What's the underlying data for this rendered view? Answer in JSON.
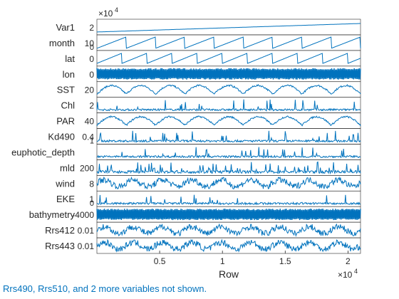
{
  "chart_data": {
    "type": "line",
    "subtype": "stackedplot",
    "color": "#0072BD",
    "xlabel": "Row",
    "xlim": [
      1,
      21000
    ],
    "xticks": [
      5000,
      10000,
      15000,
      20000
    ],
    "xtick_labels": [
      "0.5",
      "1",
      "1.5",
      "2"
    ],
    "x_exponent_base": "×10",
    "x_exponent_power": "4",
    "top_exponent_base": "×10",
    "top_exponent_power": "4",
    "footnote": "Rrs490, Rrs510, and 2 more variables not shown.",
    "variables": [
      {
        "name": "Var1",
        "ytick": "2",
        "pattern": "ramp",
        "range": [
          0,
          2.1
        ]
      },
      {
        "name": "month",
        "ytick": "10",
        "ytick2": "0",
        "pattern": "sawtooth",
        "range": [
          0,
          12
        ]
      },
      {
        "name": "lat",
        "ytick": "0",
        "pattern": "sawtooth2",
        "range": [
          -30,
          30
        ]
      },
      {
        "name": "lon",
        "ytick": "0",
        "pattern": "dense",
        "range": [
          -180,
          180
        ]
      },
      {
        "name": "SST",
        "ytick": "20",
        "pattern": "seasonal",
        "range": [
          10,
          30
        ]
      },
      {
        "name": "Chl",
        "ytick": "2",
        "pattern": "spiky",
        "range": [
          0,
          3
        ]
      },
      {
        "name": "PAR",
        "ytick": "40",
        "pattern": "seasonal",
        "range": [
          10,
          60
        ]
      },
      {
        "name": "Kd490",
        "ytick": "0.4",
        "ytick2": "1",
        "pattern": "spiky",
        "range": [
          0,
          0.6
        ]
      },
      {
        "name": "euphotic_depth",
        "ytick": "",
        "pattern": "spiky",
        "range": [
          0,
          1
        ]
      },
      {
        "name": "mld",
        "ytick": "200",
        "pattern": "spiky2",
        "range": [
          0,
          400
        ]
      },
      {
        "name": "wind",
        "ytick": "8",
        "pattern": "noisy",
        "range": [
          2,
          14
        ]
      },
      {
        "name": "EKE",
        "ytick": "1",
        "ytick2": "0",
        "pattern": "spiky",
        "range": [
          0,
          1.5
        ]
      },
      {
        "name": "bathymetry",
        "ytick": "-4000",
        "pattern": "dense",
        "range": [
          -6000,
          0
        ]
      },
      {
        "name": "Rrs412",
        "ytick": "0.01",
        "pattern": "noisy",
        "range": [
          0,
          0.02
        ]
      },
      {
        "name": "Rrs443",
        "ytick": "0.01",
        "pattern": "noisy",
        "range": [
          0,
          0.02
        ]
      }
    ]
  }
}
